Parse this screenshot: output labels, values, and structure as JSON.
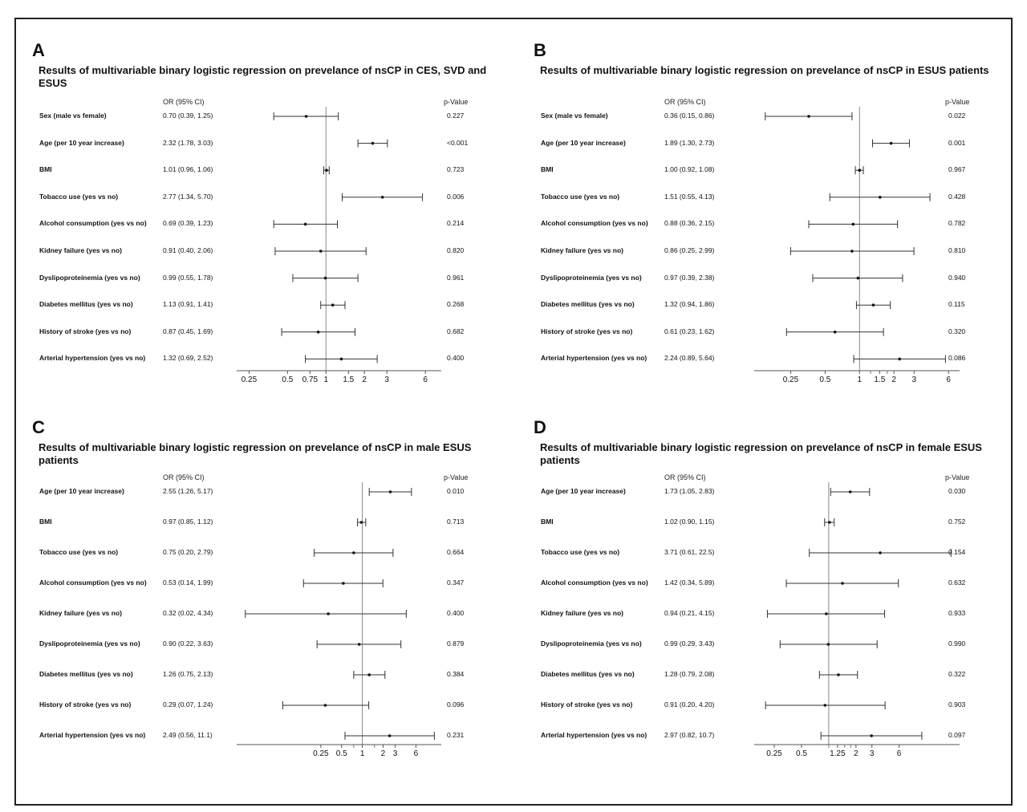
{
  "chart_data": [
    {
      "type": "forest",
      "panel": "A",
      "title": "Results of multivariable binary logistic regression on prevelance of nsCP in CES, SVD and ESUS",
      "or_header": "OR (95% CI)",
      "p_header": "p-Value",
      "xscale": "log",
      "xlim": [
        0.2,
        8
      ],
      "ticks": [
        0.25,
        0.5,
        0.75,
        1,
        1.5,
        2,
        3,
        6
      ],
      "tick_labels": [
        "0.25",
        "0.5",
        "0.75",
        "1",
        "1.5",
        "2",
        "3",
        "6"
      ],
      "minor_ticks": [],
      "reference": 1,
      "rows": [
        {
          "label": "Sex (male vs female)",
          "or": 0.7,
          "lo": 0.39,
          "hi": 1.25,
          "or_text": "0.70 (0.39, 1.25)",
          "p": "0.227"
        },
        {
          "label": "Age (per 10 year increase)",
          "or": 2.32,
          "lo": 1.78,
          "hi": 3.03,
          "or_text": "2.32 (1.78, 3.03)",
          "p": "<0.001"
        },
        {
          "label": "BMI",
          "or": 1.01,
          "lo": 0.96,
          "hi": 1.06,
          "or_text": "1.01 (0.96, 1.06)",
          "p": "0.723"
        },
        {
          "label": "Tobacco use (yes vs no)",
          "or": 2.77,
          "lo": 1.34,
          "hi": 5.7,
          "or_text": "2.77 (1.34, 5.70)",
          "p": "0.006"
        },
        {
          "label": "Alcohol consumption (yes vs no)",
          "or": 0.69,
          "lo": 0.39,
          "hi": 1.23,
          "or_text": "0.69 (0.39, 1.23)",
          "p": "0.214"
        },
        {
          "label": "Kidney failure (yes vs no)",
          "or": 0.91,
          "lo": 0.4,
          "hi": 2.06,
          "or_text": "0.91 (0.40, 2.06)",
          "p": "0.820"
        },
        {
          "label": "Dyslipoproteinemia (yes vs no)",
          "or": 0.99,
          "lo": 0.55,
          "hi": 1.78,
          "or_text": "0.99 (0.55, 1.78)",
          "p": "0.961"
        },
        {
          "label": "Diabetes mellitus (yes vs no)",
          "or": 1.13,
          "lo": 0.91,
          "hi": 1.41,
          "or_text": "1.13 (0.91, 1.41)",
          "p": "0.268"
        },
        {
          "label": "History of stroke (yes vs no)",
          "or": 0.87,
          "lo": 0.45,
          "hi": 1.69,
          "or_text": "0.87 (0.45, 1.69)",
          "p": "0.682"
        },
        {
          "label": "Arterial hypertension (yes vs no)",
          "or": 1.32,
          "lo": 0.69,
          "hi": 2.52,
          "or_text": "1.32 (0.69, 2.52)",
          "p": "0.400"
        }
      ]
    },
    {
      "type": "forest",
      "panel": "B",
      "title": "Results of multivariable binary logistic regression on prevelance of nsCP in ESUS patients",
      "or_header": "OR (95% CI)",
      "p_header": "p-Value",
      "xscale": "log",
      "xlim": [
        0.12,
        7.5
      ],
      "ticks": [
        0.25,
        0.5,
        1,
        1.5,
        2,
        3,
        6
      ],
      "tick_labels": [
        "0.25",
        "0.5",
        "1",
        "1.5",
        "2",
        "3",
        "6"
      ],
      "minor_ticks": [
        1.25,
        1.75
      ],
      "reference": 1,
      "rows": [
        {
          "label": "Sex (male vs female)",
          "or": 0.36,
          "lo": 0.15,
          "hi": 0.86,
          "or_text": "0.36 (0.15, 0.86)",
          "p": "0.022"
        },
        {
          "label": "Age (per 10 year increase)",
          "or": 1.89,
          "lo": 1.3,
          "hi": 2.73,
          "or_text": "1.89 (1.30, 2.73)",
          "p": "0.001"
        },
        {
          "label": "BMI",
          "or": 1.0,
          "lo": 0.92,
          "hi": 1.08,
          "or_text": "1.00 (0.92, 1.08)",
          "p": "0.967"
        },
        {
          "label": "Tobacco use (yes vs no)",
          "or": 1.51,
          "lo": 0.55,
          "hi": 4.13,
          "or_text": "1.51 (0.55, 4.13)",
          "p": "0.428"
        },
        {
          "label": "Alcohol consumption (yes vs no)",
          "or": 0.88,
          "lo": 0.36,
          "hi": 2.15,
          "or_text": "0.88 (0.36, 2.15)",
          "p": "0.782"
        },
        {
          "label": "Kidney failure (yes vs no)",
          "or": 0.86,
          "lo": 0.25,
          "hi": 2.99,
          "or_text": "0.86 (0.25, 2.99)",
          "p": "0.810"
        },
        {
          "label": "Dyslipoproteinemia (yes vs no)",
          "or": 0.97,
          "lo": 0.39,
          "hi": 2.38,
          "or_text": "0.97 (0.39, 2.38)",
          "p": "0.940"
        },
        {
          "label": "Diabetes mellitus (yes vs no)",
          "or": 1.32,
          "lo": 0.94,
          "hi": 1.86,
          "or_text": "1.32 (0.94, 1.86)",
          "p": "0.115"
        },
        {
          "label": "History of stroke (yes vs no)",
          "or": 0.61,
          "lo": 0.23,
          "hi": 1.62,
          "or_text": "0.61 (0.23, 1.62)",
          "p": "0.320"
        },
        {
          "label": "Arterial hypertension (yes vs no)",
          "or": 2.24,
          "lo": 0.89,
          "hi": 5.64,
          "or_text": "2.24 (0.89, 5.64)",
          "p": "0.086"
        }
      ]
    },
    {
      "type": "forest",
      "panel": "C",
      "title": "Results of multivariable binary logistic regression on prevelance of nsCP in male ESUS patients",
      "or_header": "OR (95% CI)",
      "p_header": "p-Value",
      "xscale": "log",
      "xlim": [
        0.015,
        14
      ],
      "ticks": [
        0.25,
        0.5,
        1,
        2,
        3,
        6
      ],
      "tick_labels": [
        "0.25",
        "0.5",
        "1",
        "2",
        "3",
        "6"
      ],
      "minor_ticks": [
        0.75,
        1.5
      ],
      "reference": 1,
      "rows": [
        {
          "label": "Age (per 10 year increase)",
          "or": 2.55,
          "lo": 1.26,
          "hi": 5.17,
          "or_text": "2.55 (1.26, 5.17)",
          "p": "0.010"
        },
        {
          "label": "BMI",
          "or": 0.97,
          "lo": 0.85,
          "hi": 1.12,
          "or_text": "0.97 (0.85, 1.12)",
          "p": "0.713"
        },
        {
          "label": "Tobacco use (yes vs no)",
          "or": 0.75,
          "lo": 0.2,
          "hi": 2.79,
          "or_text": "0.75 (0.20, 2.79)",
          "p": "0.664"
        },
        {
          "label": "Alcohol consumption (yes vs no)",
          "or": 0.53,
          "lo": 0.14,
          "hi": 1.99,
          "or_text": "0.53 (0.14, 1.99)",
          "p": "0.347"
        },
        {
          "label": "Kidney failure (yes vs no)",
          "or": 0.32,
          "lo": 0.02,
          "hi": 4.34,
          "or_text": "0.32 (0.02, 4.34)",
          "p": "0.400"
        },
        {
          "label": "Dyslipoproteinemia (yes vs no)",
          "or": 0.9,
          "lo": 0.22,
          "hi": 3.63,
          "or_text": "0.90 (0.22, 3.63)",
          "p": "0.879"
        },
        {
          "label": "Diabetes mellitus (yes vs no)",
          "or": 1.26,
          "lo": 0.75,
          "hi": 2.13,
          "or_text": "1.26 (0.75, 2.13)",
          "p": "0.384"
        },
        {
          "label": "History of stroke (yes vs no)",
          "or": 0.29,
          "lo": 0.07,
          "hi": 1.24,
          "or_text": "0.29 (0.07, 1.24)",
          "p": "0.096"
        },
        {
          "label": "Arterial hypertension (yes vs no)",
          "or": 2.49,
          "lo": 0.56,
          "hi": 11.1,
          "or_text": "2.49 (0.56, 11.1)",
          "p": "0.231"
        }
      ]
    },
    {
      "type": "forest",
      "panel": "D",
      "title": "Results of multivariable binary logistic regression on prevelance of nsCP in female ESUS patients",
      "or_header": "OR (95% CI)",
      "p_header": "p-Value",
      "xscale": "log",
      "xlim": [
        0.15,
        28
      ],
      "ticks": [
        0.25,
        0.5,
        1.25,
        2,
        3,
        6
      ],
      "tick_labels": [
        "0.25",
        "0.5",
        "1.25",
        "2",
        "3",
        "6"
      ],
      "minor_ticks": [
        1,
        1.5,
        1.75
      ],
      "reference": 1,
      "rows": [
        {
          "label": "Age (per 10 year increase)",
          "or": 1.73,
          "lo": 1.05,
          "hi": 2.83,
          "or_text": "1.73 (1.05, 2.83)",
          "p": "0.030"
        },
        {
          "label": "BMI",
          "or": 1.02,
          "lo": 0.9,
          "hi": 1.15,
          "or_text": "1.02 (0.90, 1.15)",
          "p": "0.752"
        },
        {
          "label": "Tobacco use (yes vs no)",
          "or": 3.71,
          "lo": 0.61,
          "hi": 22.5,
          "or_text": "3.71 (0.61, 22.5)",
          "p": "0.154"
        },
        {
          "label": "Alcohol consumption (yes vs no)",
          "or": 1.42,
          "lo": 0.34,
          "hi": 5.89,
          "or_text": "1.42 (0.34, 5.89)",
          "p": "0.632"
        },
        {
          "label": "Kidney failure (yes vs no)",
          "or": 0.94,
          "lo": 0.21,
          "hi": 4.15,
          "or_text": "0.94 (0.21, 4.15)",
          "p": "0.933"
        },
        {
          "label": "Dyslipoproteinemia (yes vs no)",
          "or": 0.99,
          "lo": 0.29,
          "hi": 3.43,
          "or_text": "0.99 (0.29, 3.43)",
          "p": "0.990"
        },
        {
          "label": "Diabetes mellitus (yes vs no)",
          "or": 1.28,
          "lo": 0.79,
          "hi": 2.08,
          "or_text": "1.28 (0.79, 2.08)",
          "p": "0.322"
        },
        {
          "label": "History of stroke (yes vs no)",
          "or": 0.91,
          "lo": 0.2,
          "hi": 4.2,
          "or_text": "0.91 (0.20, 4.20)",
          "p": "0.903"
        },
        {
          "label": "Arterial hypertension (yes vs no)",
          "or": 2.97,
          "lo": 0.82,
          "hi": 10.7,
          "or_text": "2.97 (0.82, 10.7)",
          "p": "0.097"
        }
      ]
    }
  ]
}
